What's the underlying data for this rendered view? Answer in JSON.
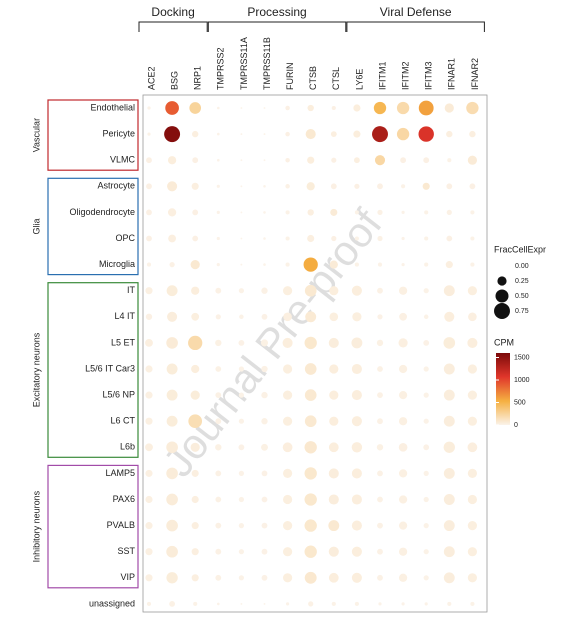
{
  "chart_data": {
    "type": "dotplot",
    "watermark": "Journal Pre-proof",
    "gene_groups": [
      {
        "name": "Docking",
        "genes": [
          "ACE2",
          "BSG",
          "NRP1"
        ]
      },
      {
        "name": "Processing",
        "genes": [
          "TMPRSS2",
          "TMPRSS11A",
          "TMPRSS11B",
          "FURIN",
          "CTSB",
          "CTSL"
        ]
      },
      {
        "name": "Viral Defense",
        "genes": [
          "LY6E",
          "IFITM1",
          "IFITM2",
          "IFITM3",
          "IFNAR1",
          "IFNAR2"
        ]
      }
    ],
    "row_groups": [
      {
        "name": "Vascular",
        "color": "#c0282d",
        "cells": [
          {
            "name": "Endothelial",
            "frac": [
              0.03,
              0.55,
              0.4,
              0.02,
              0.01,
              0.01,
              0.06,
              0.12,
              0.05,
              0.15,
              0.45,
              0.45,
              0.65,
              0.25,
              0.45
            ],
            "cpm": [
              10,
              900,
              250,
              5,
              0,
              0,
              20,
              40,
              20,
              40,
              480,
              200,
              600,
              60,
              180
            ]
          },
          {
            "name": "Pericyte",
            "frac": [
              0.03,
              0.75,
              0.12,
              0.02,
              0.01,
              0.01,
              0.06,
              0.3,
              0.1,
              0.15,
              0.75,
              0.45,
              0.7,
              0.12,
              0.12
            ],
            "cpm": [
              10,
              1550,
              30,
              5,
              0,
              0,
              20,
              80,
              30,
              40,
              1350,
              220,
              1100,
              30,
              30
            ]
          },
          {
            "name": "VLMC",
            "frac": [
              0.1,
              0.2,
              0.1,
              0.02,
              0.01,
              0.01,
              0.06,
              0.15,
              0.08,
              0.1,
              0.3,
              0.1,
              0.1,
              0.05,
              0.25
            ],
            "cpm": [
              20,
              40,
              20,
              5,
              0,
              0,
              20,
              40,
              20,
              30,
              220,
              20,
              20,
              10,
              60
            ]
          }
        ]
      },
      {
        "name": "Glia",
        "color": "#2a6fb0",
        "cells": [
          {
            "name": "Astrocyte",
            "frac": [
              0.1,
              0.3,
              0.15,
              0.03,
              0.01,
              0.02,
              0.06,
              0.2,
              0.1,
              0.08,
              0.1,
              0.05,
              0.15,
              0.1,
              0.1
            ],
            "cpm": [
              20,
              60,
              30,
              5,
              0,
              0,
              15,
              50,
              20,
              20,
              20,
              10,
              80,
              20,
              20
            ]
          },
          {
            "name": "Oligodendrocyte",
            "frac": [
              0.1,
              0.2,
              0.1,
              0.03,
              0.01,
              0.02,
              0.05,
              0.12,
              0.15,
              0.05,
              0.08,
              0.03,
              0.05,
              0.08,
              0.05
            ],
            "cpm": [
              20,
              30,
              20,
              5,
              0,
              0,
              10,
              30,
              60,
              10,
              15,
              5,
              10,
              15,
              10
            ]
          },
          {
            "name": "OPC",
            "frac": [
              0.1,
              0.18,
              0.1,
              0.03,
              0.01,
              0.02,
              0.05,
              0.15,
              0.08,
              0.05,
              0.08,
              0.03,
              0.05,
              0.1,
              0.05
            ],
            "cpm": [
              20,
              30,
              20,
              5,
              0,
              0,
              10,
              30,
              20,
              10,
              15,
              5,
              10,
              20,
              10
            ]
          },
          {
            "name": "Microglia",
            "frac": [
              0.05,
              0.08,
              0.25,
              0.03,
              0.01,
              0.02,
              0.05,
              0.6,
              0.2,
              0.05,
              0.05,
              0.03,
              0.05,
              0.15,
              0.05
            ],
            "cpm": [
              10,
              15,
              80,
              5,
              0,
              0,
              10,
              550,
              60,
              10,
              10,
              5,
              10,
              30,
              10
            ]
          }
        ]
      },
      {
        "name": "Excitatory neurons",
        "color": "#3a8a3a",
        "cells": [
          {
            "name": "IT",
            "frac": [
              0.15,
              0.35,
              0.2,
              0.1,
              0.08,
              0.12,
              0.25,
              0.4,
              0.25,
              0.3,
              0.1,
              0.2,
              0.08,
              0.35,
              0.25
            ],
            "cpm": [
              25,
              50,
              40,
              15,
              10,
              15,
              35,
              80,
              40,
              40,
              15,
              25,
              10,
              45,
              35
            ]
          },
          {
            "name": "L4 IT",
            "frac": [
              0.12,
              0.3,
              0.18,
              0.08,
              0.06,
              0.1,
              0.22,
              0.35,
              0.22,
              0.25,
              0.08,
              0.18,
              0.06,
              0.3,
              0.22
            ],
            "cpm": [
              20,
              45,
              35,
              12,
              8,
              12,
              30,
              70,
              35,
              35,
              12,
              22,
              8,
              40,
              30
            ]
          },
          {
            "name": "L5 ET",
            "frac": [
              0.18,
              0.4,
              0.6,
              0.12,
              0.1,
              0.15,
              0.3,
              0.45,
              0.3,
              0.35,
              0.12,
              0.25,
              0.1,
              0.4,
              0.3
            ],
            "cpm": [
              30,
              60,
              200,
              18,
              12,
              18,
              40,
              90,
              45,
              45,
              18,
              30,
              12,
              50,
              40
            ]
          },
          {
            "name": "L5/6 IT Car3",
            "frac": [
              0.15,
              0.35,
              0.2,
              0.1,
              0.08,
              0.12,
              0.25,
              0.4,
              0.25,
              0.3,
              0.1,
              0.2,
              0.08,
              0.35,
              0.25
            ],
            "cpm": [
              25,
              50,
              40,
              15,
              10,
              15,
              35,
              80,
              40,
              40,
              15,
              25,
              10,
              45,
              35
            ]
          },
          {
            "name": "L5/6 NP",
            "frac": [
              0.15,
              0.35,
              0.25,
              0.1,
              0.08,
              0.12,
              0.25,
              0.4,
              0.25,
              0.3,
              0.1,
              0.2,
              0.08,
              0.35,
              0.25
            ],
            "cpm": [
              25,
              50,
              50,
              15,
              10,
              15,
              35,
              80,
              40,
              40,
              15,
              25,
              10,
              45,
              35
            ]
          },
          {
            "name": "L6 CT",
            "frac": [
              0.15,
              0.35,
              0.55,
              0.1,
              0.08,
              0.12,
              0.25,
              0.4,
              0.25,
              0.3,
              0.1,
              0.2,
              0.08,
              0.35,
              0.25
            ],
            "cpm": [
              25,
              50,
              170,
              15,
              10,
              15,
              35,
              80,
              40,
              40,
              15,
              25,
              10,
              45,
              35
            ]
          },
          {
            "name": "L6b",
            "frac": [
              0.18,
              0.4,
              0.25,
              0.12,
              0.1,
              0.14,
              0.28,
              0.45,
              0.28,
              0.32,
              0.12,
              0.22,
              0.1,
              0.38,
              0.28
            ],
            "cpm": [
              30,
              55,
              45,
              18,
              12,
              18,
              38,
              85,
              42,
              42,
              18,
              28,
              12,
              48,
              38
            ]
          }
        ]
      },
      {
        "name": "Inhibitory neurons",
        "color": "#a24ba8",
        "cells": [
          {
            "name": "LAMP5",
            "frac": [
              0.15,
              0.4,
              0.15,
              0.1,
              0.08,
              0.1,
              0.25,
              0.45,
              0.3,
              0.3,
              0.1,
              0.2,
              0.08,
              0.35,
              0.25
            ],
            "cpm": [
              25,
              55,
              30,
              15,
              10,
              12,
              35,
              90,
              45,
              40,
              15,
              25,
              10,
              45,
              35
            ]
          },
          {
            "name": "PAX6",
            "frac": [
              0.15,
              0.4,
              0.15,
              0.1,
              0.08,
              0.1,
              0.25,
              0.45,
              0.3,
              0.3,
              0.1,
              0.2,
              0.08,
              0.35,
              0.25
            ],
            "cpm": [
              25,
              55,
              30,
              15,
              10,
              12,
              35,
              90,
              45,
              40,
              15,
              25,
              10,
              45,
              35
            ]
          },
          {
            "name": "PVALB",
            "frac": [
              0.15,
              0.4,
              0.15,
              0.1,
              0.08,
              0.1,
              0.25,
              0.45,
              0.35,
              0.3,
              0.1,
              0.2,
              0.08,
              0.35,
              0.25
            ],
            "cpm": [
              25,
              55,
              30,
              15,
              10,
              12,
              35,
              90,
              80,
              40,
              15,
              25,
              10,
              45,
              35
            ]
          },
          {
            "name": "SST",
            "frac": [
              0.15,
              0.4,
              0.15,
              0.1,
              0.08,
              0.1,
              0.25,
              0.45,
              0.3,
              0.3,
              0.1,
              0.2,
              0.08,
              0.35,
              0.25
            ],
            "cpm": [
              25,
              55,
              30,
              15,
              10,
              12,
              35,
              90,
              45,
              40,
              15,
              25,
              10,
              45,
              35
            ]
          },
          {
            "name": "VIP",
            "frac": [
              0.15,
              0.38,
              0.15,
              0.1,
              0.08,
              0.1,
              0.25,
              0.42,
              0.28,
              0.3,
              0.1,
              0.2,
              0.08,
              0.35,
              0.25
            ],
            "cpm": [
              25,
              50,
              30,
              15,
              10,
              12,
              35,
              85,
              40,
              40,
              15,
              25,
              10,
              45,
              35
            ]
          }
        ]
      },
      {
        "cells": [
          {
            "name": "unassigned",
            "frac": [
              0.05,
              0.1,
              0.05,
              0.02,
              0.01,
              0.01,
              0.03,
              0.08,
              0.05,
              0.05,
              0.03,
              0.03,
              0.03,
              0.05,
              0.05
            ],
            "cpm": [
              10,
              15,
              10,
              5,
              0,
              0,
              5,
              15,
              10,
              10,
              5,
              5,
              5,
              10,
              10
            ]
          }
        ]
      }
    ],
    "size_legend": {
      "title": "FracCellExpr",
      "ticks": [
        {
          "value": 0,
          "label": "0.00"
        },
        0.25,
        {
          "value": 0.5,
          "label": "0.50"
        },
        0.75
      ]
    },
    "color_legend": {
      "title": "CPM",
      "lim": [
        0,
        1600
      ],
      "ticks": [
        0,
        500,
        1000,
        1500
      ],
      "colors": [
        "#fbf3ea",
        "#f5b041",
        "#e0362b",
        "#7b0a0a"
      ]
    }
  }
}
